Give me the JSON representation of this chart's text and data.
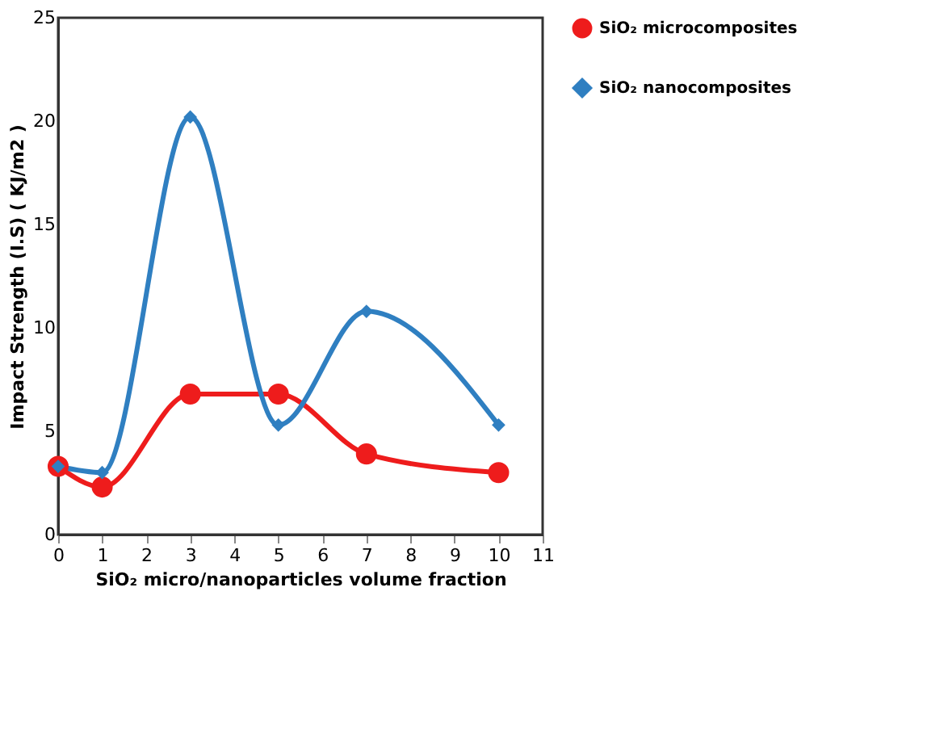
{
  "chart_data": {
    "type": "line",
    "xlabel": "SiO₂ micro/nanoparticles volume fraction",
    "ylabel": "Impact Strength (I.S) ( KJ/m2 )",
    "x": [
      0,
      1,
      3,
      5,
      7,
      10
    ],
    "series": [
      {
        "name": "SiO₂ microcomposites",
        "color": "#ee1c1c",
        "marker": "circle",
        "values": [
          3.3,
          2.3,
          6.8,
          6.8,
          3.9,
          3.0
        ]
      },
      {
        "name": "SiO₂ nanocomposites",
        "color": "#2f7fc1",
        "marker": "diamond",
        "values": [
          3.3,
          3.0,
          20.2,
          5.3,
          10.8,
          5.3
        ]
      }
    ],
    "xlim": [
      0,
      11
    ],
    "xticks": [
      0,
      1,
      2,
      3,
      4,
      5,
      6,
      7,
      8,
      9,
      10,
      11
    ],
    "ylim": [
      0,
      25
    ],
    "yticks": [
      0,
      5,
      10,
      15,
      20,
      25
    ],
    "grid": false,
    "legend": "right",
    "line_style": "solid"
  }
}
